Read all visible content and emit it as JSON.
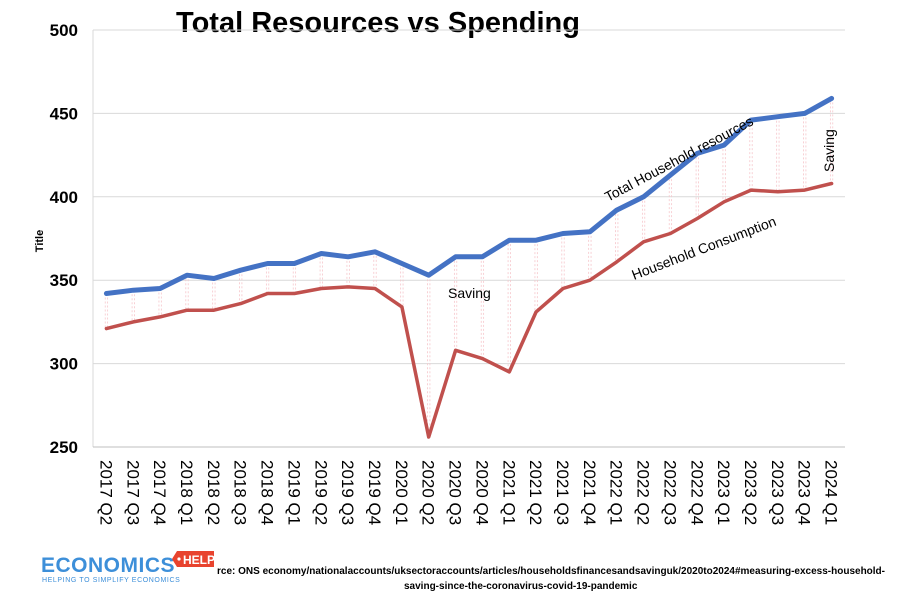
{
  "chart_data": {
    "type": "line",
    "title": "Total Resources vs Spending",
    "ylabel": "Title",
    "xlabel": "",
    "ylim": [
      250,
      500
    ],
    "yticks": [
      250,
      300,
      350,
      400,
      450,
      500
    ],
    "grid": true,
    "categories": [
      "2017 Q2",
      "2017 Q3",
      "2017 Q4",
      "2018 Q1",
      "2018 Q2",
      "2018 Q3",
      "2018 Q4",
      "2019 Q1",
      "2019 Q2",
      "2019 Q3",
      "2019 Q4",
      "2020 Q1",
      "2020 Q2",
      "2020 Q3",
      "2020 Q4",
      "2021 Q1",
      "2021 Q2",
      "2021 Q3",
      "2021 Q4",
      "2022 Q1",
      "2022 Q2",
      "2022 Q3",
      "2022 Q4",
      "2023 Q1",
      "2023 Q2",
      "2023 Q3",
      "2023 Q4",
      "2024 Q1"
    ],
    "series": [
      {
        "name": "Total Household resources",
        "color": "#4472c4",
        "values": [
          342,
          344,
          345,
          353,
          351,
          356,
          360,
          360,
          366,
          364,
          367,
          360,
          353,
          364,
          364,
          374,
          374,
          378,
          379,
          392,
          400,
          413,
          426,
          431,
          446,
          448,
          450,
          459
        ]
      },
      {
        "name": "Household Consumption",
        "color": "#c0504d",
        "values": [
          321,
          325,
          328,
          332,
          332,
          336,
          342,
          342,
          345,
          346,
          345,
          334,
          256,
          308,
          303,
          295,
          331,
          345,
          350,
          361,
          373,
          378,
          387,
          397,
          404,
          403,
          404,
          408
        ]
      }
    ],
    "annotations": {
      "resources_label": "Total Household resources",
      "consumption_label": "Household Consumption",
      "saving_mid": "Saving",
      "saving_right": "Saving"
    },
    "source": {
      "line1": "rce: ONS economy/nationalaccounts/uksectoraccounts/articles/householdsfinancesandsavinguk/2020to2024#measuring-excess-household-",
      "line2": "saving-since-the-coronavirus-covid-19-pandemic"
    },
    "logo": {
      "main": "ECONOMICS",
      "badge": "HELP",
      "tagline": "HELPING TO SIMPLIFY ECONOMICS"
    }
  }
}
